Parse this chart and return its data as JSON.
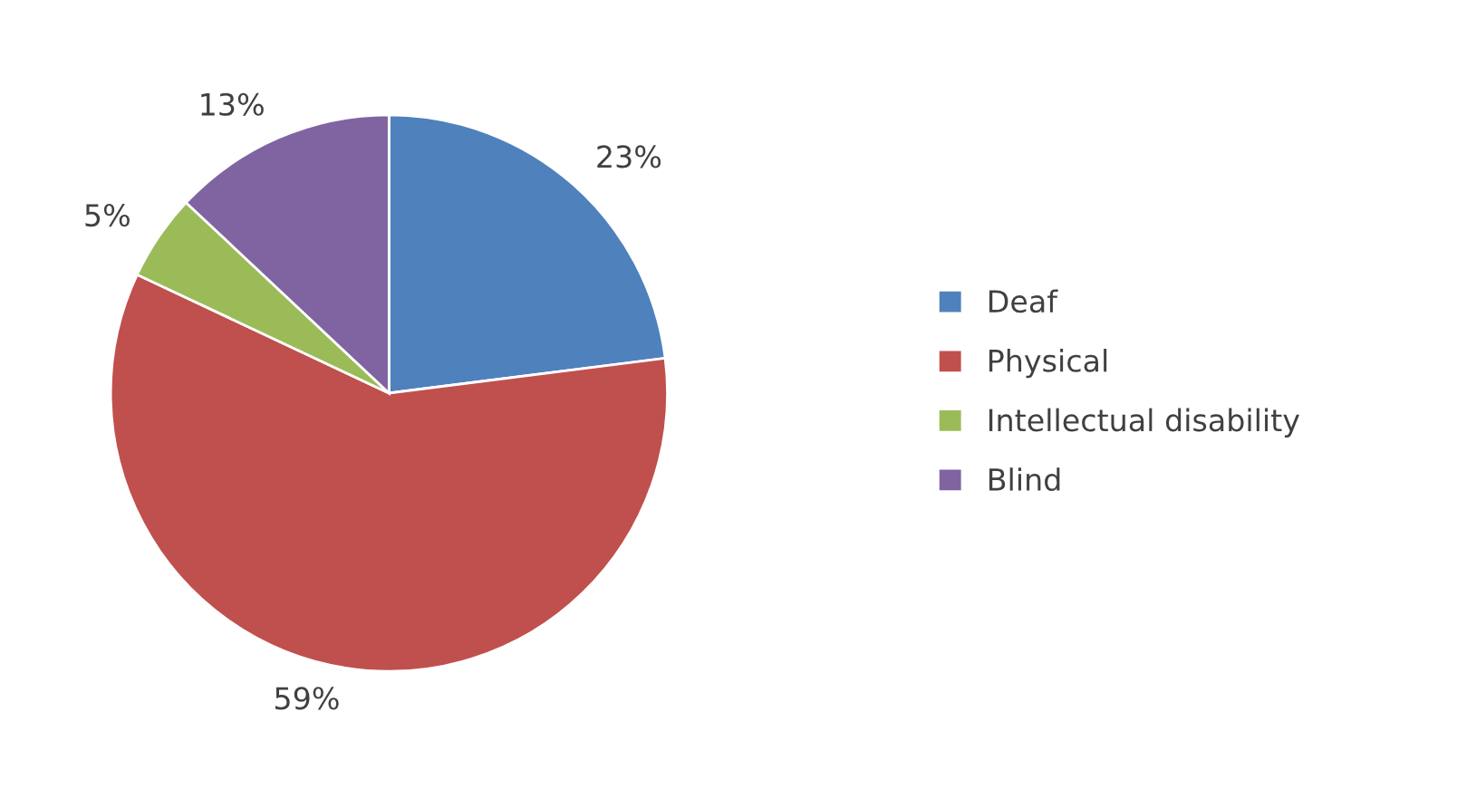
{
  "chart_data": {
    "type": "pie",
    "categories": [
      "Deaf",
      "Physical",
      "Intellectual disability",
      "Blind"
    ],
    "values": [
      23,
      59,
      5,
      13
    ],
    "value_labels": [
      "23%",
      "59%",
      "5%",
      "13%"
    ],
    "colors": [
      "#4f81bd",
      "#c0504d",
      "#9bbb59",
      "#8064a2"
    ],
    "legend": "right"
  }
}
